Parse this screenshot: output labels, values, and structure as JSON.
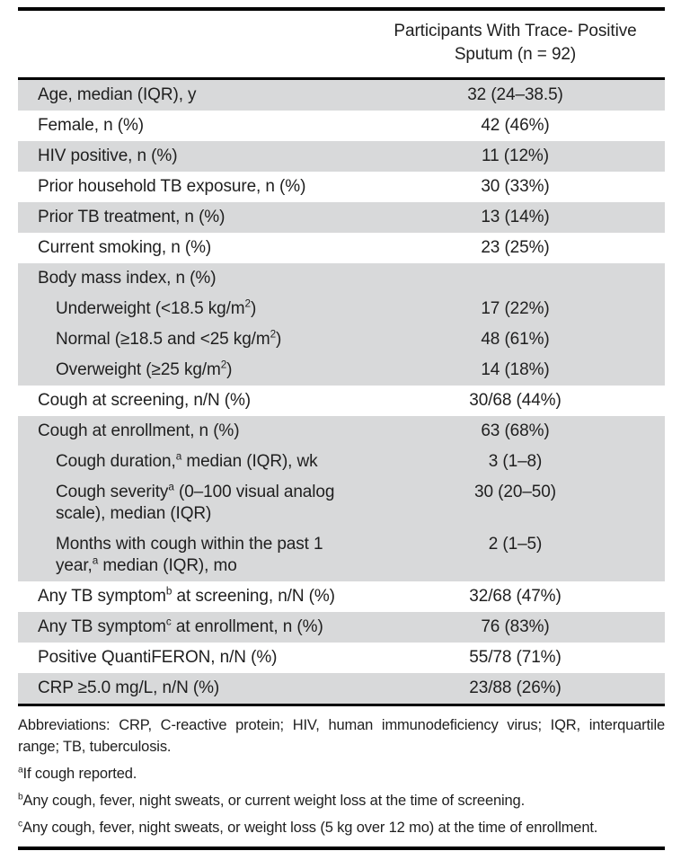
{
  "table": {
    "header": {
      "line1": "Participants With Trace- Positive",
      "line2": "Sputum (n = 92)"
    },
    "rows": [
      {
        "label": "Age, median (IQR), y",
        "value": "32 (24–38.5)",
        "shade": "gray",
        "indent": 0
      },
      {
        "label": "Female, n (%)",
        "value": "42 (46%)",
        "shade": "white",
        "indent": 0
      },
      {
        "label": "HIV positive, n (%)",
        "value": "11 (12%)",
        "shade": "gray",
        "indent": 0
      },
      {
        "label": "Prior household TB exposure, n (%)",
        "value": "30 (33%)",
        "shade": "white",
        "indent": 0
      },
      {
        "label": "Prior TB treatment, n (%)",
        "value": "13 (14%)",
        "shade": "gray",
        "indent": 0
      },
      {
        "label": "Current smoking, n (%)",
        "value": "23 (25%)",
        "shade": "white",
        "indent": 0
      },
      {
        "label": "Body mass index, n (%)",
        "value": "",
        "shade": "gray",
        "indent": 0
      },
      {
        "label": "Underweight (<18.5 kg/m^2^)",
        "value": "17 (22%)",
        "shade": "gray",
        "indent": 1
      },
      {
        "label": "Normal (≥18.5 and <25 kg/m^2^)",
        "value": "48 (61%)",
        "shade": "gray",
        "indent": 1
      },
      {
        "label": "Overweight (≥25 kg/m^2^)",
        "value": "14 (18%)",
        "shade": "gray",
        "indent": 1
      },
      {
        "label": "Cough at screening, n/N (%)",
        "value": "30/68 (44%)",
        "shade": "white",
        "indent": 0
      },
      {
        "label": "Cough at enrollment, n (%)",
        "value": "63 (68%)",
        "shade": "gray",
        "indent": 0
      },
      {
        "label": "Cough duration,^a^ median (IQR), wk",
        "value": "3 (1–8)",
        "shade": "gray",
        "indent": 1
      },
      {
        "label": "Cough severity^a^ (0–100 visual analog scale), median (IQR)",
        "value": "30 (20–50)",
        "shade": "gray",
        "indent": 1
      },
      {
        "label": "Months with cough within the past 1 year,^a^ median (IQR), mo",
        "value": "2 (1–5)",
        "shade": "gray",
        "indent": 1
      },
      {
        "label": "Any TB symptom^b^ at screening, n/N (%)",
        "value": "32/68 (47%)",
        "shade": "white",
        "indent": 0
      },
      {
        "label": "Any TB symptom^c^ at enrollment, n (%)",
        "value": "76 (83%)",
        "shade": "gray",
        "indent": 0
      },
      {
        "label": "Positive QuantiFERON, n/N (%)",
        "value": "55/78 (71%)",
        "shade": "white",
        "indent": 0
      },
      {
        "label": "CRP ≥5.0 mg/L, n/N (%)",
        "value": "23/88 (26%)",
        "shade": "gray",
        "indent": 0
      }
    ],
    "footnotes": {
      "abbreviations": "Abbreviations: CRP, C-reactive protein; HIV, human immunodeficiency virus; IQR, interquartile range; TB, tuberculosis.",
      "fn_a": "^a^If cough reported.",
      "fn_b": "^b^Any cough, fever, night sweats, or current weight loss at the time of screening.",
      "fn_c": "^c^Any cough, fever, night sweats, or weight loss (5 kg over 12 mo) at the time of enrollment."
    },
    "colors": {
      "row_shade": "#d8d9da",
      "text": "#1f1f1f",
      "rule": "#000000"
    }
  }
}
